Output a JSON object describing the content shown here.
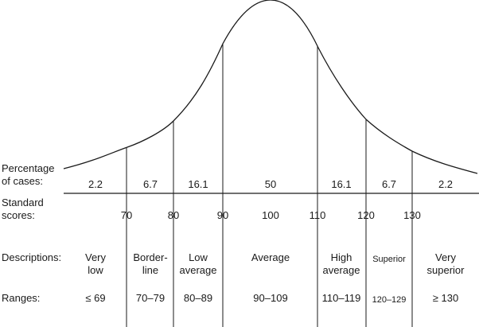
{
  "row_labels": {
    "percentage_line1": "Percentage",
    "percentage_line2": "of cases:",
    "standard_line1": "Standard",
    "standard_line2": "scores:",
    "descriptions": "Descriptions:",
    "ranges": "Ranges:"
  },
  "percentages": [
    "2.2",
    "6.7",
    "16.1",
    "50",
    "16.1",
    "6.7",
    "2.2"
  ],
  "standard_scores": [
    "70",
    "80",
    "90",
    "100",
    "110",
    "120",
    "130"
  ],
  "descriptions": [
    {
      "line1": "Very",
      "line2": "low"
    },
    {
      "line1": "Border-",
      "line2": "line"
    },
    {
      "line1": "Low",
      "line2": "average"
    },
    {
      "line1": "Average",
      "line2": ""
    },
    {
      "line1": "High",
      "line2": "average"
    },
    {
      "line1": "Superior",
      "line2": ""
    },
    {
      "line1": "Very",
      "line2": "superior"
    }
  ],
  "ranges": [
    "≤ 69",
    "70–79",
    "80–89",
    "90–109",
    "110–119",
    "120–129",
    "≥ 130"
  ]
}
